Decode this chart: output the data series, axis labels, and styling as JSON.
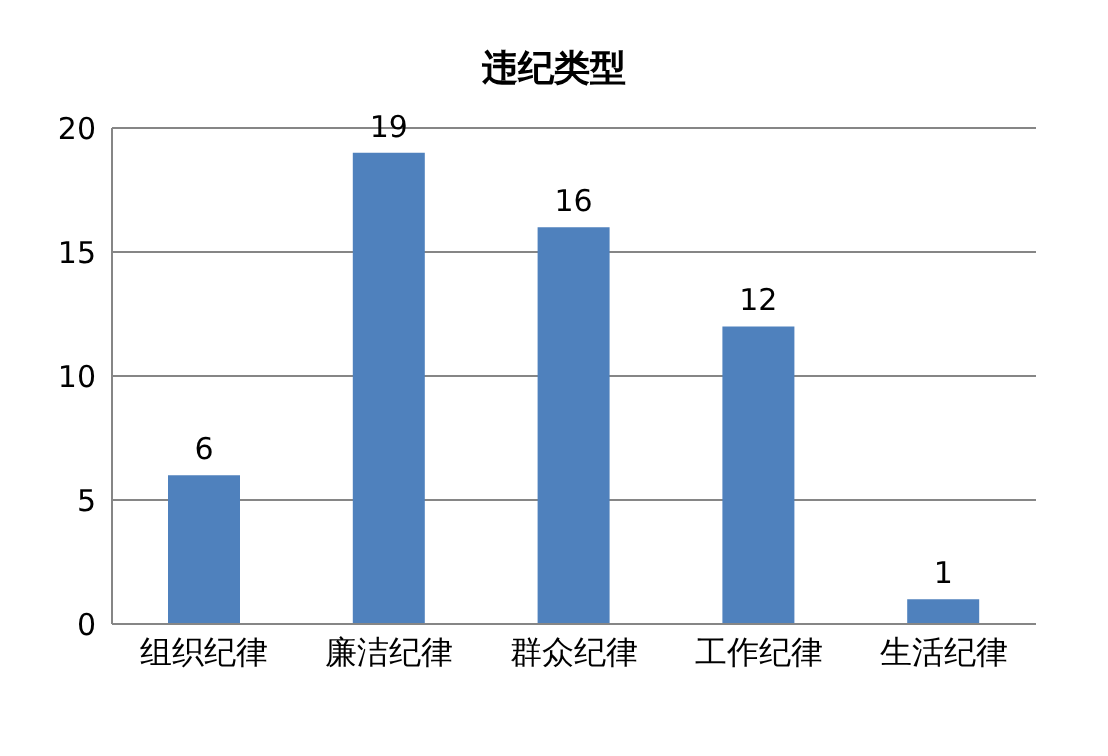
{
  "chart_data": {
    "type": "bar",
    "title": "违纪类型",
    "categories": [
      "组织纪律",
      "廉洁纪律",
      "群众纪律",
      "工作纪律",
      "生活纪律"
    ],
    "values": [
      6,
      19,
      16,
      12,
      1
    ],
    "color": "#4f81bd",
    "ylim": [
      0,
      20
    ],
    "yticks": [
      0,
      5,
      10,
      15,
      20
    ],
    "grid": "y",
    "data_labels": true
  }
}
